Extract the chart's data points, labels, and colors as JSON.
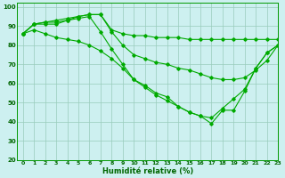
{
  "xlabel": "Humidité relative (%)",
  "bg_color": "#cdf0f0",
  "grid_color": "#99ccbb",
  "line_color": "#00aa00",
  "xlim": [
    -0.5,
    23
  ],
  "ylim": [
    20,
    102
  ],
  "xticks": [
    0,
    1,
    2,
    3,
    4,
    5,
    6,
    7,
    8,
    9,
    10,
    11,
    12,
    13,
    14,
    15,
    16,
    17,
    18,
    19,
    20,
    21,
    22,
    23
  ],
  "yticks": [
    20,
    30,
    40,
    50,
    60,
    70,
    80,
    90,
    100
  ],
  "lines": [
    {
      "x": [
        0,
        1,
        2,
        3,
        4,
        5,
        6,
        7,
        8,
        9,
        10,
        11,
        12,
        13,
        14,
        15,
        16,
        17,
        18,
        19,
        20,
        21,
        22,
        23
      ],
      "y": [
        86,
        91,
        92,
        92,
        93,
        95,
        96,
        96,
        88,
        86,
        85,
        85,
        84,
        84,
        84,
        83,
        83,
        83,
        83,
        83,
        83,
        83,
        83,
        83
      ]
    },
    {
      "x": [
        0,
        1,
        2,
        3,
        4,
        5,
        6,
        7,
        8,
        9,
        10,
        11,
        12,
        13,
        14,
        15,
        16,
        17,
        18,
        19,
        20,
        21,
        22,
        23
      ],
      "y": [
        86,
        91,
        92,
        93,
        94,
        95,
        96,
        96,
        87,
        80,
        75,
        73,
        71,
        70,
        68,
        67,
        65,
        63,
        62,
        62,
        63,
        67,
        72,
        80
      ]
    },
    {
      "x": [
        0,
        1,
        2,
        3,
        4,
        5,
        6,
        7,
        8,
        9,
        10,
        11,
        12,
        13,
        14,
        15,
        16,
        17,
        18,
        19,
        20,
        21,
        22,
        23
      ],
      "y": [
        86,
        91,
        91,
        91,
        93,
        94,
        95,
        87,
        78,
        70,
        62,
        59,
        55,
        53,
        48,
        45,
        43,
        42,
        47,
        52,
        57,
        68,
        76,
        80
      ]
    },
    {
      "x": [
        0,
        1,
        2,
        3,
        4,
        5,
        6,
        7,
        8,
        9,
        10,
        11,
        12,
        13,
        14,
        15,
        16,
        17,
        18,
        19,
        20,
        21,
        22,
        23
      ],
      "y": [
        86,
        88,
        86,
        84,
        83,
        82,
        80,
        77,
        73,
        68,
        62,
        58,
        54,
        51,
        48,
        45,
        43,
        39,
        46,
        46,
        56,
        68,
        76,
        80
      ]
    }
  ]
}
